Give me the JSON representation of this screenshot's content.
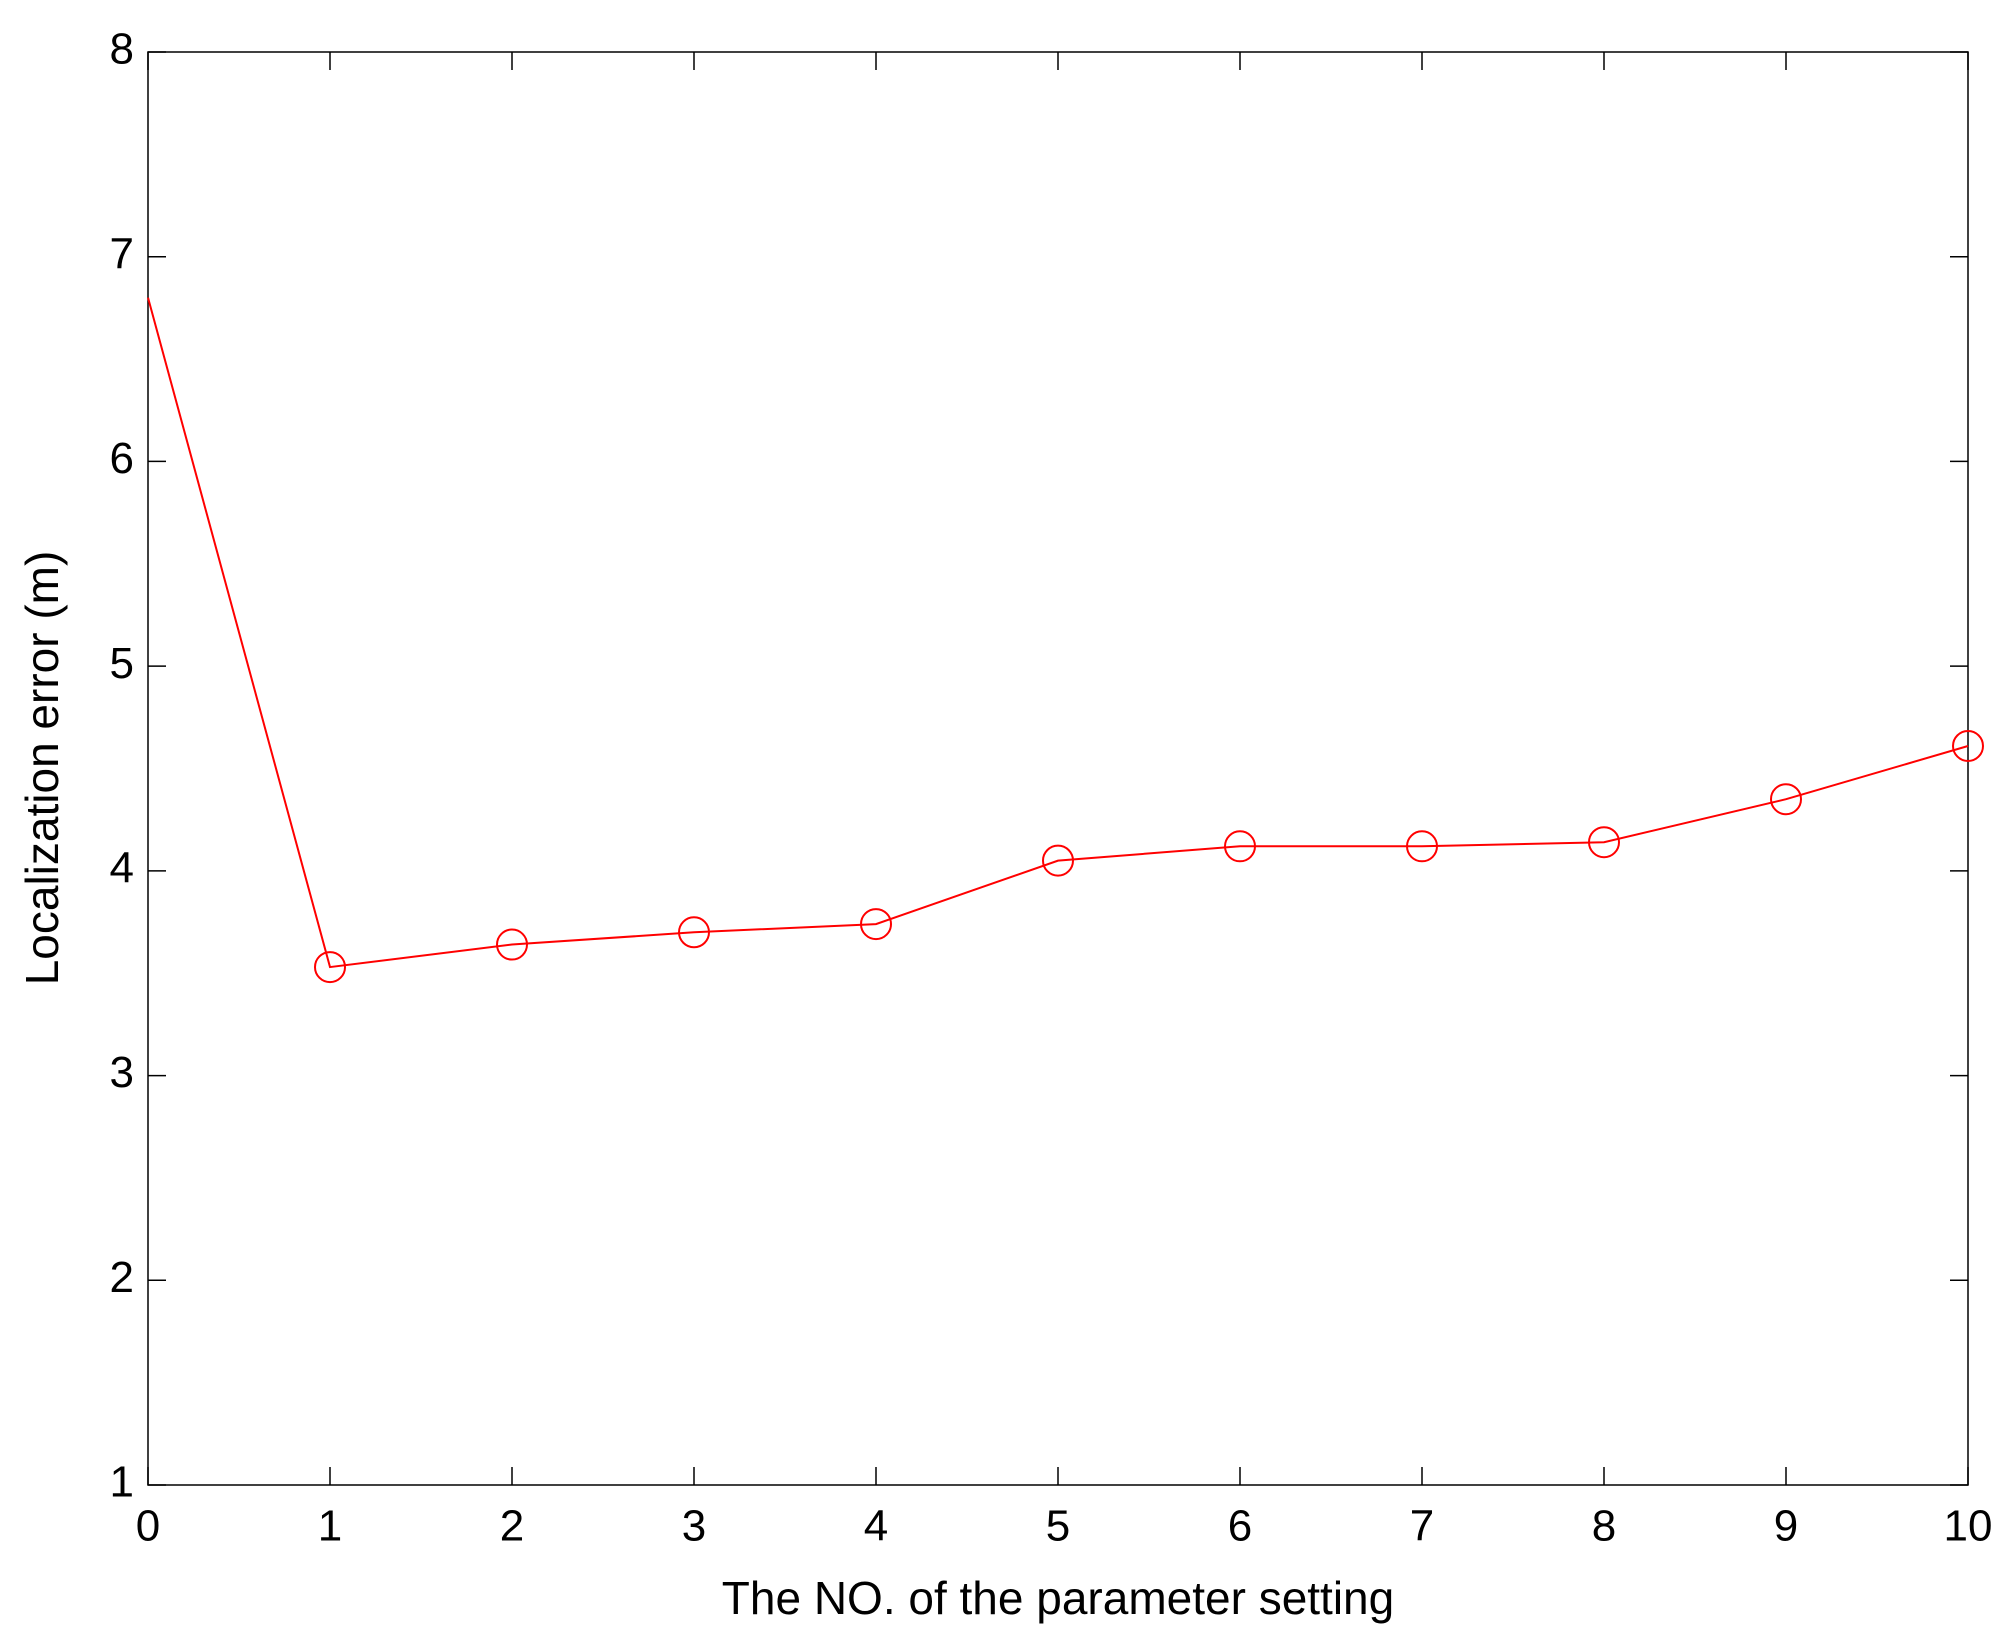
{
  "chart_data": {
    "type": "line",
    "x_label": "The NO. of the parameter setting",
    "y_label": "Localization error (m)",
    "x": [
      0,
      1,
      2,
      3,
      4,
      5,
      6,
      7,
      8,
      9,
      10
    ],
    "values": [
      6.8,
      3.53,
      3.64,
      3.7,
      3.74,
      4.05,
      4.12,
      4.12,
      4.14,
      4.35,
      4.61
    ],
    "color": "#ff0000",
    "marker": "circle",
    "xlim": [
      0,
      10
    ],
    "xticks": [
      0,
      1,
      2,
      3,
      4,
      5,
      6,
      7,
      8,
      9,
      10
    ],
    "ylim": [
      1,
      8
    ],
    "yticks": [
      1,
      2,
      3,
      4,
      5,
      6,
      7,
      8
    ],
    "grid": false
  }
}
